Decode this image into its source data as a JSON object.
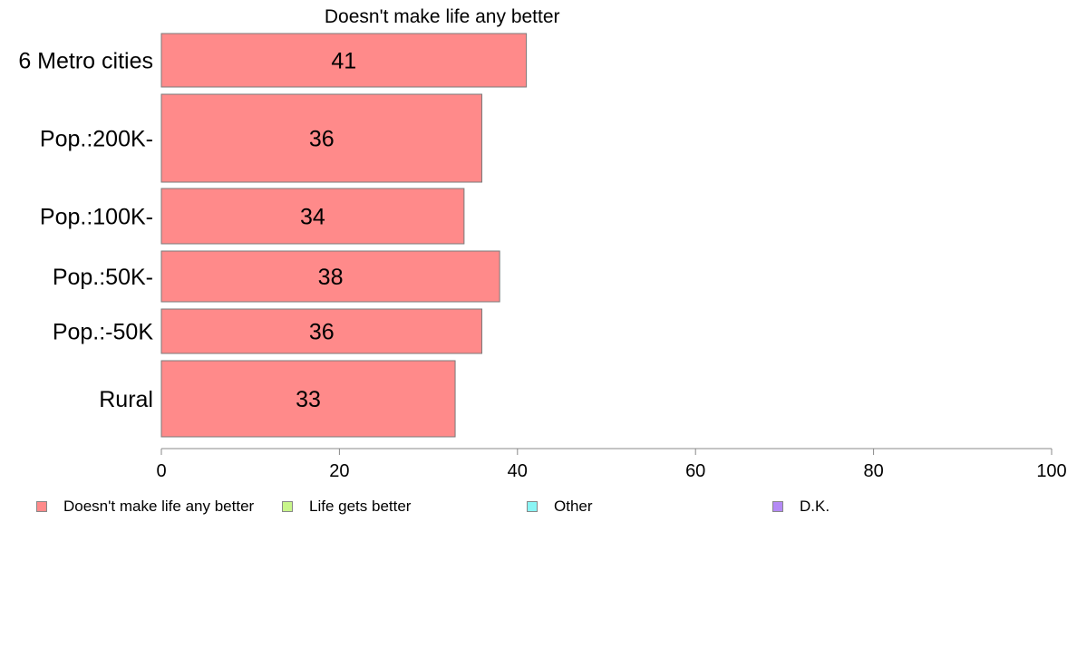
{
  "chart_data": {
    "type": "bar",
    "orientation": "horizontal",
    "title": "Doesn't make life any better",
    "categories": [
      "6 Metro cities",
      "Pop.:200K-",
      "Pop.:100K-",
      "Pop.:50K-",
      "Pop.:-50K",
      "Rural"
    ],
    "series": [
      {
        "name": "Doesn't make life any better",
        "values": [
          41,
          36,
          34,
          38,
          36,
          33
        ],
        "color": "#ff8a8a"
      }
    ],
    "xlim": [
      0,
      100
    ],
    "xticks": [
      0,
      20,
      40,
      60,
      80,
      100
    ],
    "grid": false,
    "legend_position": "bottom"
  },
  "legend": [
    {
      "label": "Doesn't make life any better",
      "color": "#ff8a8a"
    },
    {
      "label": "Life gets better",
      "color": "#c8f58a"
    },
    {
      "label": "Other",
      "color": "#8af5f5"
    },
    {
      "label": "D.K.",
      "color": "#b48af5"
    }
  ]
}
